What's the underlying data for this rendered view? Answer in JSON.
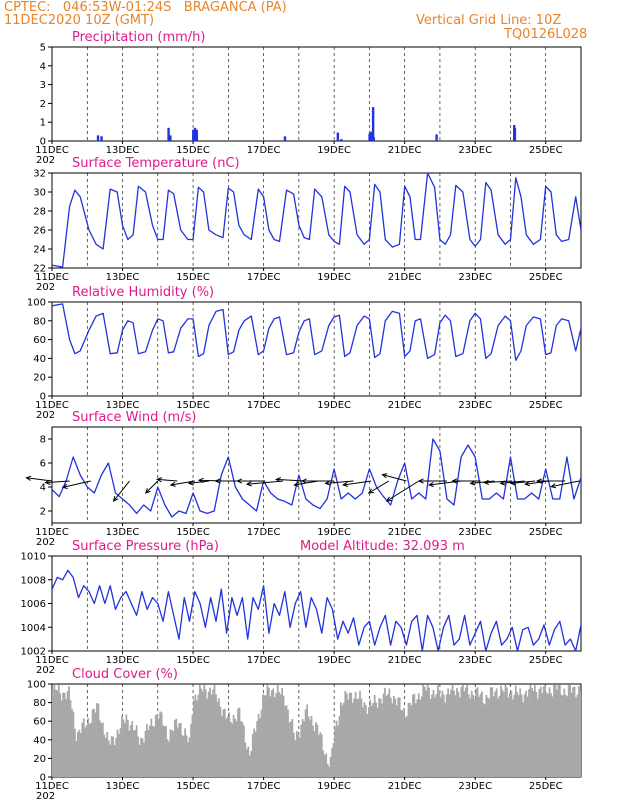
{
  "header": {
    "line1": "CPTEC:   046:53W-01:24S   BRAGANCA (PA)",
    "line2": "11DEC2020 10Z (GMT)",
    "grid_note": "Vertical Grid Line: 10Z",
    "code": "TQ0126L028"
  },
  "colors": {
    "header": "#e8842a",
    "title": "#e01a8c",
    "series": "#2233dd",
    "cloud": "#a8a8a8",
    "arrow": "#000000"
  },
  "x_axis": {
    "start_day": 11,
    "end_day": 26,
    "tick_labels": [
      "11DEC",
      "13DEC",
      "15DEC",
      "17DEC",
      "19DEC",
      "21DEC",
      "23DEC",
      "25DEC"
    ],
    "truncated_year": "202"
  },
  "chart_data": [
    {
      "type": "bar",
      "title": "Precipitation (mm/h)",
      "ylim": [
        0,
        5
      ],
      "yticks": [
        "0",
        "1",
        "2",
        "3",
        "4",
        "5"
      ],
      "x": [
        12.3,
        12.4,
        14.3,
        14.35,
        15.0,
        15.05,
        15.1,
        17.6,
        19.1,
        19.2,
        20.0,
        20.05,
        20.1,
        20.12,
        21.9,
        24.1,
        24.12
      ],
      "values": [
        0.3,
        0.25,
        0.7,
        0.3,
        0.6,
        0.7,
        0.6,
        0.25,
        0.45,
        0.1,
        0.4,
        0.5,
        1.8,
        0.2,
        0.35,
        0.85,
        0.7
      ]
    },
    {
      "type": "line",
      "title": "Surface Temperature (nC)",
      "ylim": [
        22,
        32
      ],
      "yticks": [
        "22",
        "24",
        "26",
        "28",
        "30",
        "32"
      ],
      "x": [
        11.0,
        11.3,
        11.5,
        11.65,
        11.8,
        12.05,
        12.25,
        12.45,
        12.65,
        12.85,
        13.0,
        13.15,
        13.3,
        13.45,
        13.65,
        13.85,
        14.0,
        14.15,
        14.3,
        14.45,
        14.65,
        14.85,
        15.0,
        15.15,
        15.3,
        15.45,
        15.65,
        15.85,
        16.0,
        16.15,
        16.3,
        16.45,
        16.65,
        16.85,
        17.0,
        17.15,
        17.3,
        17.45,
        17.65,
        17.85,
        18.0,
        18.15,
        18.3,
        18.45,
        18.65,
        18.85,
        19.0,
        19.15,
        19.3,
        19.45,
        19.65,
        19.85,
        20.0,
        20.15,
        20.3,
        20.45,
        20.65,
        20.85,
        21.0,
        21.15,
        21.3,
        21.45,
        21.65,
        21.85,
        22.0,
        22.15,
        22.3,
        22.45,
        22.65,
        22.85,
        23.0,
        23.15,
        23.3,
        23.45,
        23.65,
        23.85,
        24.0,
        24.15,
        24.3,
        24.45,
        24.65,
        24.85,
        25.0,
        25.15,
        25.3,
        25.45,
        25.65,
        25.85,
        26.0
      ],
      "values": [
        22.3,
        22.1,
        28.5,
        30.2,
        29.5,
        26.0,
        24.5,
        24.0,
        30.3,
        30.0,
        26.5,
        25.0,
        25.5,
        30.6,
        30.0,
        26.5,
        25.0,
        25.0,
        30.2,
        29.8,
        26.0,
        25.0,
        25.0,
        30.5,
        30.0,
        26.0,
        25.5,
        25.2,
        30.4,
        30.0,
        26.5,
        25.5,
        25.0,
        30.3,
        29.5,
        26.0,
        25.0,
        24.8,
        30.2,
        29.8,
        26.5,
        25.2,
        25.0,
        30.3,
        29.5,
        25.5,
        24.8,
        24.5,
        30.6,
        30.0,
        25.5,
        24.5,
        25.0,
        30.8,
        30.0,
        25.0,
        24.2,
        24.5,
        30.6,
        29.5,
        25.0,
        25.0,
        32.0,
        30.5,
        25.0,
        24.5,
        25.5,
        30.7,
        30.0,
        25.0,
        24.3,
        25.0,
        31.0,
        30.2,
        25.5,
        24.5,
        25.0,
        31.5,
        29.5,
        25.5,
        24.5,
        25.0,
        30.6,
        30.0,
        25.5,
        24.8,
        25.0,
        29.5,
        26.0
      ]
    },
    {
      "type": "line",
      "title": "Relative Humidity (%)",
      "ylim": [
        0,
        100
      ],
      "yticks": [
        "0",
        "20",
        "40",
        "60",
        "80",
        "100"
      ],
      "x": [
        11.0,
        11.3,
        11.5,
        11.65,
        11.8,
        12.05,
        12.25,
        12.45,
        12.65,
        12.85,
        13.0,
        13.15,
        13.3,
        13.45,
        13.65,
        13.85,
        14.0,
        14.15,
        14.3,
        14.45,
        14.65,
        14.85,
        15.0,
        15.15,
        15.3,
        15.45,
        15.65,
        15.85,
        16.0,
        16.15,
        16.3,
        16.45,
        16.65,
        16.85,
        17.0,
        17.15,
        17.3,
        17.45,
        17.65,
        17.85,
        18.0,
        18.15,
        18.3,
        18.45,
        18.65,
        18.85,
        19.0,
        19.15,
        19.3,
        19.45,
        19.65,
        19.85,
        20.0,
        20.15,
        20.3,
        20.45,
        20.65,
        20.85,
        21.0,
        21.15,
        21.3,
        21.45,
        21.65,
        21.85,
        22.0,
        22.15,
        22.3,
        22.45,
        22.65,
        22.85,
        23.0,
        23.15,
        23.3,
        23.45,
        23.65,
        23.85,
        24.0,
        24.15,
        24.3,
        24.45,
        24.65,
        24.85,
        25.0,
        25.15,
        25.3,
        25.45,
        25.65,
        25.85,
        26.0
      ],
      "values": [
        96,
        98,
        60,
        45,
        48,
        70,
        85,
        88,
        45,
        46,
        70,
        80,
        78,
        45,
        47,
        70,
        82,
        80,
        46,
        47,
        72,
        82,
        82,
        42,
        45,
        75,
        90,
        92,
        44,
        47,
        70,
        80,
        85,
        44,
        48,
        72,
        82,
        84,
        44,
        46,
        68,
        80,
        82,
        44,
        48,
        75,
        84,
        86,
        42,
        46,
        75,
        85,
        82,
        41,
        45,
        80,
        90,
        88,
        42,
        48,
        80,
        82,
        40,
        44,
        78,
        86,
        80,
        42,
        45,
        80,
        88,
        82,
        40,
        45,
        75,
        85,
        80,
        38,
        48,
        75,
        84,
        82,
        44,
        46,
        75,
        82,
        80,
        48,
        72
      ]
    },
    {
      "type": "line",
      "title": "Surface Wind (m/s)",
      "ylim": [
        1,
        9
      ],
      "yticks": [
        "2",
        "4",
        "6",
        "8"
      ],
      "x": [
        11.0,
        11.2,
        11.4,
        11.6,
        11.8,
        12.0,
        12.2,
        12.4,
        12.6,
        12.8,
        13.0,
        13.2,
        13.4,
        13.6,
        13.8,
        14.0,
        14.2,
        14.4,
        14.6,
        14.8,
        15.0,
        15.2,
        15.4,
        15.6,
        15.8,
        16.0,
        16.2,
        16.4,
        16.6,
        16.8,
        17.0,
        17.2,
        17.4,
        17.6,
        17.8,
        18.0,
        18.2,
        18.4,
        18.6,
        18.8,
        19.0,
        19.2,
        19.4,
        19.6,
        19.8,
        20.0,
        20.2,
        20.4,
        20.6,
        20.8,
        21.0,
        21.2,
        21.4,
        21.6,
        21.8,
        22.0,
        22.2,
        22.4,
        22.6,
        22.8,
        23.0,
        23.2,
        23.4,
        23.6,
        23.8,
        24.0,
        24.2,
        24.4,
        24.6,
        24.8,
        25.0,
        25.2,
        25.4,
        25.6,
        25.8,
        26.0
      ],
      "values": [
        3.8,
        3.2,
        4.5,
        6.5,
        5.0,
        4.0,
        3.5,
        5.0,
        6.0,
        3.5,
        3.0,
        2.5,
        1.8,
        2.5,
        2.0,
        4.0,
        2.5,
        1.5,
        2.0,
        1.8,
        3.5,
        2.0,
        1.8,
        2.0,
        5.0,
        6.5,
        4.0,
        3.0,
        2.5,
        2.0,
        4.5,
        3.5,
        3.0,
        2.8,
        2.5,
        5.0,
        3.0,
        2.5,
        2.2,
        3.0,
        5.5,
        3.0,
        3.5,
        3.0,
        3.5,
        5.5,
        4.0,
        3.2,
        2.5,
        4.5,
        6.0,
        3.0,
        3.5,
        3.0,
        8.0,
        7.0,
        3.0,
        2.5,
        6.5,
        7.5,
        6.5,
        3.0,
        3.0,
        3.5,
        3.0,
        6.5,
        3.0,
        3.0,
        3.5,
        3.0,
        5.5,
        3.0,
        3.0,
        6.5,
        3.0,
        4.8
      ],
      "vectors_x": [
        11.0,
        11.5,
        12.1,
        13.2,
        14.0,
        14.55,
        15.05,
        15.45,
        15.85,
        16.55,
        17.05,
        17.55,
        18.15,
        18.55,
        19.0,
        19.55,
        20.05,
        20.55,
        21.05,
        21.4,
        22.2,
        22.6,
        23.15,
        23.55,
        24.05,
        24.4,
        24.7,
        25.1,
        25.55,
        25.95
      ],
      "vectors_u": [
        -3.2,
        -3.0,
        -3.5,
        -2.0,
        -1.5,
        -2.5,
        -3.0,
        -2.5,
        -3.0,
        -4.0,
        -3.5,
        -4.5,
        -3.5,
        -3.0,
        -4.0,
        -3.5,
        -3.5,
        -2.5,
        -3.0,
        -4.0,
        -3.5,
        -4.0,
        -3.5,
        -3.0,
        -3.5,
        -3.0,
        -3.0,
        -3.0,
        -3.5,
        -3.5
      ],
      "vectors_v": [
        0.4,
        -0.2,
        -0.8,
        -2.5,
        -1.5,
        0.2,
        -0.5,
        -0.3,
        0.1,
        0.0,
        0.0,
        -0.4,
        0.2,
        -0.5,
        0.0,
        -0.3,
        -0.5,
        -1.5,
        0.8,
        -2.5,
        0.0,
        -0.5,
        0.0,
        -0.3,
        -0.2,
        -0.3,
        -0.3,
        -0.4,
        0.0,
        -0.7
      ]
    },
    {
      "type": "line",
      "title": "Surface Pressure (hPa)",
      "annotation": "Model Altitude: 32.093 m",
      "ylim": [
        1002,
        1010
      ],
      "yticks": [
        "1002",
        "1004",
        "1006",
        "1008",
        "1010"
      ],
      "x": [
        11.0,
        11.15,
        11.3,
        11.45,
        11.6,
        11.75,
        11.9,
        12.05,
        12.2,
        12.35,
        12.5,
        12.65,
        12.8,
        12.95,
        13.1,
        13.25,
        13.4,
        13.55,
        13.7,
        13.85,
        14.0,
        14.15,
        14.3,
        14.45,
        14.6,
        14.75,
        14.9,
        15.05,
        15.2,
        15.35,
        15.5,
        15.65,
        15.8,
        15.95,
        16.1,
        16.25,
        16.4,
        16.55,
        16.7,
        16.85,
        17.0,
        17.15,
        17.3,
        17.45,
        17.6,
        17.75,
        17.9,
        18.05,
        18.2,
        18.35,
        18.5,
        18.65,
        18.8,
        18.95,
        19.1,
        19.25,
        19.4,
        19.55,
        19.7,
        19.85,
        20.0,
        20.15,
        20.3,
        20.45,
        20.6,
        20.75,
        20.9,
        21.05,
        21.2,
        21.35,
        21.5,
        21.65,
        21.8,
        21.95,
        22.1,
        22.25,
        22.4,
        22.55,
        22.7,
        22.85,
        23.0,
        23.15,
        23.3,
        23.45,
        23.6,
        23.75,
        23.9,
        24.05,
        24.2,
        24.35,
        24.5,
        24.65,
        24.8,
        24.95,
        25.1,
        25.25,
        25.4,
        25.55,
        25.7,
        25.85,
        26.0
      ],
      "values": [
        1007.2,
        1008.2,
        1008.0,
        1008.8,
        1008.2,
        1006.5,
        1007.5,
        1007.0,
        1006.0,
        1007.5,
        1006.0,
        1007.5,
        1005.5,
        1006.5,
        1007.0,
        1006.0,
        1005.0,
        1007.0,
        1005.5,
        1006.5,
        1006.0,
        1004.5,
        1007.0,
        1005.0,
        1003.0,
        1006.5,
        1004.5,
        1007.0,
        1006.0,
        1004.0,
        1006.5,
        1004.5,
        1007.2,
        1003.5,
        1006.5,
        1005.0,
        1006.5,
        1003.0,
        1006.5,
        1005.5,
        1007.5,
        1003.5,
        1006.0,
        1005.0,
        1007.0,
        1004.0,
        1006.0,
        1007.0,
        1004.0,
        1006.5,
        1005.5,
        1003.5,
        1006.5,
        1005.5,
        1003.0,
        1004.5,
        1003.5,
        1004.8,
        1002.5,
        1004.0,
        1004.5,
        1002.5,
        1004.0,
        1005.0,
        1002.5,
        1004.5,
        1004.0,
        1002.5,
        1004.5,
        1005.0,
        1002.0,
        1005.0,
        1004.0,
        1002.0,
        1004.0,
        1005.0,
        1002.5,
        1003.0,
        1005.0,
        1002.5,
        1003.5,
        1004.5,
        1002.0,
        1003.5,
        1004.5,
        1002.5,
        1003.0,
        1004.0,
        1002.0,
        1003.8,
        1004.0,
        1002.5,
        1003.0,
        1004.2,
        1002.5,
        1003.8,
        1004.5,
        1002.5,
        1003.0,
        1002.0,
        1004.2
      ]
    },
    {
      "type": "bar",
      "title": "Cloud Cover (%)",
      "ylim": [
        0,
        100
      ],
      "yticks": [
        "0",
        "20",
        "40",
        "60",
        "80",
        "100"
      ],
      "x": [
        11.0,
        11.5,
        11.7,
        12.0,
        12.3,
        12.6,
        12.9,
        13.1,
        13.5,
        13.8,
        14.0,
        14.3,
        14.6,
        14.9,
        15.0,
        15.3,
        15.6,
        16.0,
        16.3,
        16.6,
        17.0,
        17.3,
        17.6,
        17.9,
        18.2,
        18.5,
        18.8,
        18.9,
        19.0,
        19.2,
        19.5,
        20.0,
        20.3,
        20.6,
        21.0,
        21.3,
        21.6,
        22.0,
        22.3,
        22.6,
        23.0,
        23.3,
        23.6,
        24.0,
        24.3,
        24.6,
        25.0,
        25.3,
        25.6,
        26.0
      ],
      "values": [
        95,
        88,
        45,
        60,
        75,
        35,
        50,
        65,
        40,
        55,
        70,
        45,
        60,
        35,
        85,
        95,
        92,
        60,
        70,
        25,
        88,
        95,
        85,
        40,
        70,
        55,
        20,
        15,
        45,
        80,
        90,
        75,
        85,
        90,
        70,
        85,
        95,
        88,
        92,
        95,
        90,
        85,
        93,
        92,
        88,
        95,
        93,
        96,
        92,
        95
      ]
    }
  ]
}
